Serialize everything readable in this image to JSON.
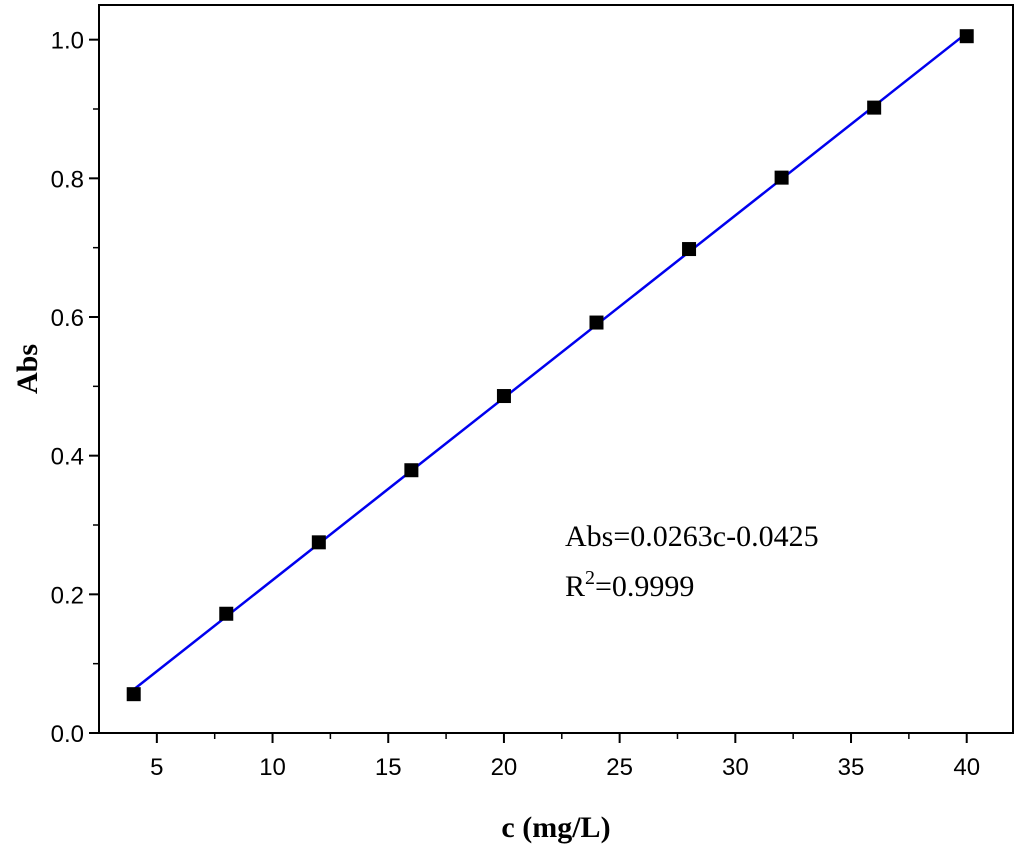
{
  "chart_data": {
    "type": "scatter",
    "xlabel": "c (mg/L)",
    "ylabel": "Abs",
    "xlim": [
      2.5,
      42
    ],
    "ylim": [
      0,
      1.05
    ],
    "x_ticks": [
      5,
      10,
      15,
      20,
      25,
      30,
      35,
      40
    ],
    "x_tick_labels": [
      "5",
      "10",
      "15",
      "20",
      "25",
      "30",
      "35",
      "40"
    ],
    "y_ticks": [
      0.0,
      0.2,
      0.4,
      0.6,
      0.8,
      1.0
    ],
    "y_tick_labels": [
      "0.0",
      "0.2",
      "0.4",
      "0.6",
      "0.8",
      "1.0"
    ],
    "grid": false,
    "series": [
      {
        "x": [
          4,
          8,
          12,
          16,
          20,
          24,
          28,
          32,
          36,
          40
        ],
        "y": [
          0.056,
          0.172,
          0.275,
          0.379,
          0.486,
          0.592,
          0.698,
          0.801,
          0.902,
          1.005
        ],
        "marker": "square",
        "color": "#000000"
      }
    ],
    "fit_line": {
      "slope": 0.0263,
      "intercept": -0.0425,
      "x_range": [
        4,
        40
      ],
      "color": "#0000ee"
    },
    "annotation": {
      "equation": "Abs=0.0263c-0.0425",
      "r2_prefix": "R",
      "r2_superscript": "2",
      "r2_value": "=0.9999"
    }
  }
}
